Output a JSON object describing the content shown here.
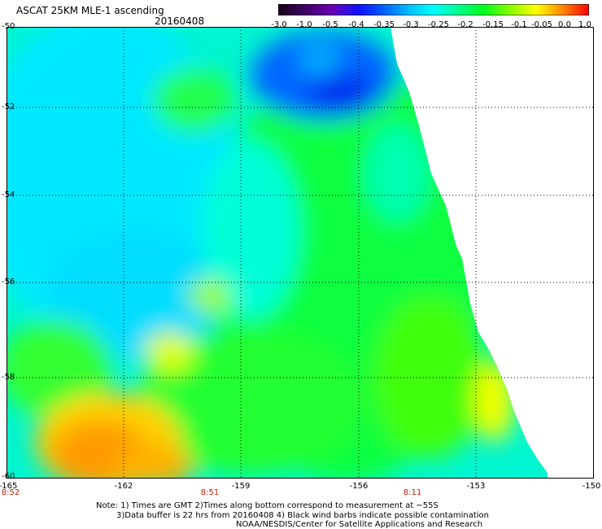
{
  "header": {
    "title": "ASCAT 25KM MLE-1 ascending",
    "date": "20160408"
  },
  "colorbar": {
    "labels": [
      "-3.0",
      "-1.0",
      "-0.5",
      "-0.4",
      "-0.35",
      "-0.3",
      "-0.25",
      "-0.2",
      "-0.15",
      "-0.1",
      "-0.05",
      "0.0",
      "1.0"
    ],
    "colors": [
      "#1a001a",
      "#5a0090",
      "#1010ff",
      "#0060ff",
      "#00b4ff",
      "#00ffff",
      "#00ffa0",
      "#00ff30",
      "#60ff00",
      "#d0ff00",
      "#ffff00",
      "#ff9000",
      "#ff1000"
    ]
  },
  "map": {
    "lat_labels": [
      "-50",
      "-52",
      "-54",
      "-56",
      "-58",
      "-60"
    ],
    "lon_labels": [
      "-165",
      "-162",
      "-159",
      "-156",
      "-153",
      "-150"
    ],
    "time_labels": [
      "8:52",
      "8:51",
      "8:11"
    ]
  },
  "notes": {
    "line1": "Note: 1) Times are GMT 2)Times along bottom correspond to measurement at ~55S",
    "line2": "3)Data buffer is 22 hrs from 20160408 4) Black wind barbs indicate possible contamination",
    "line3": "NOAA/NESDIS/Center for Satellite Applications and Research"
  }
}
